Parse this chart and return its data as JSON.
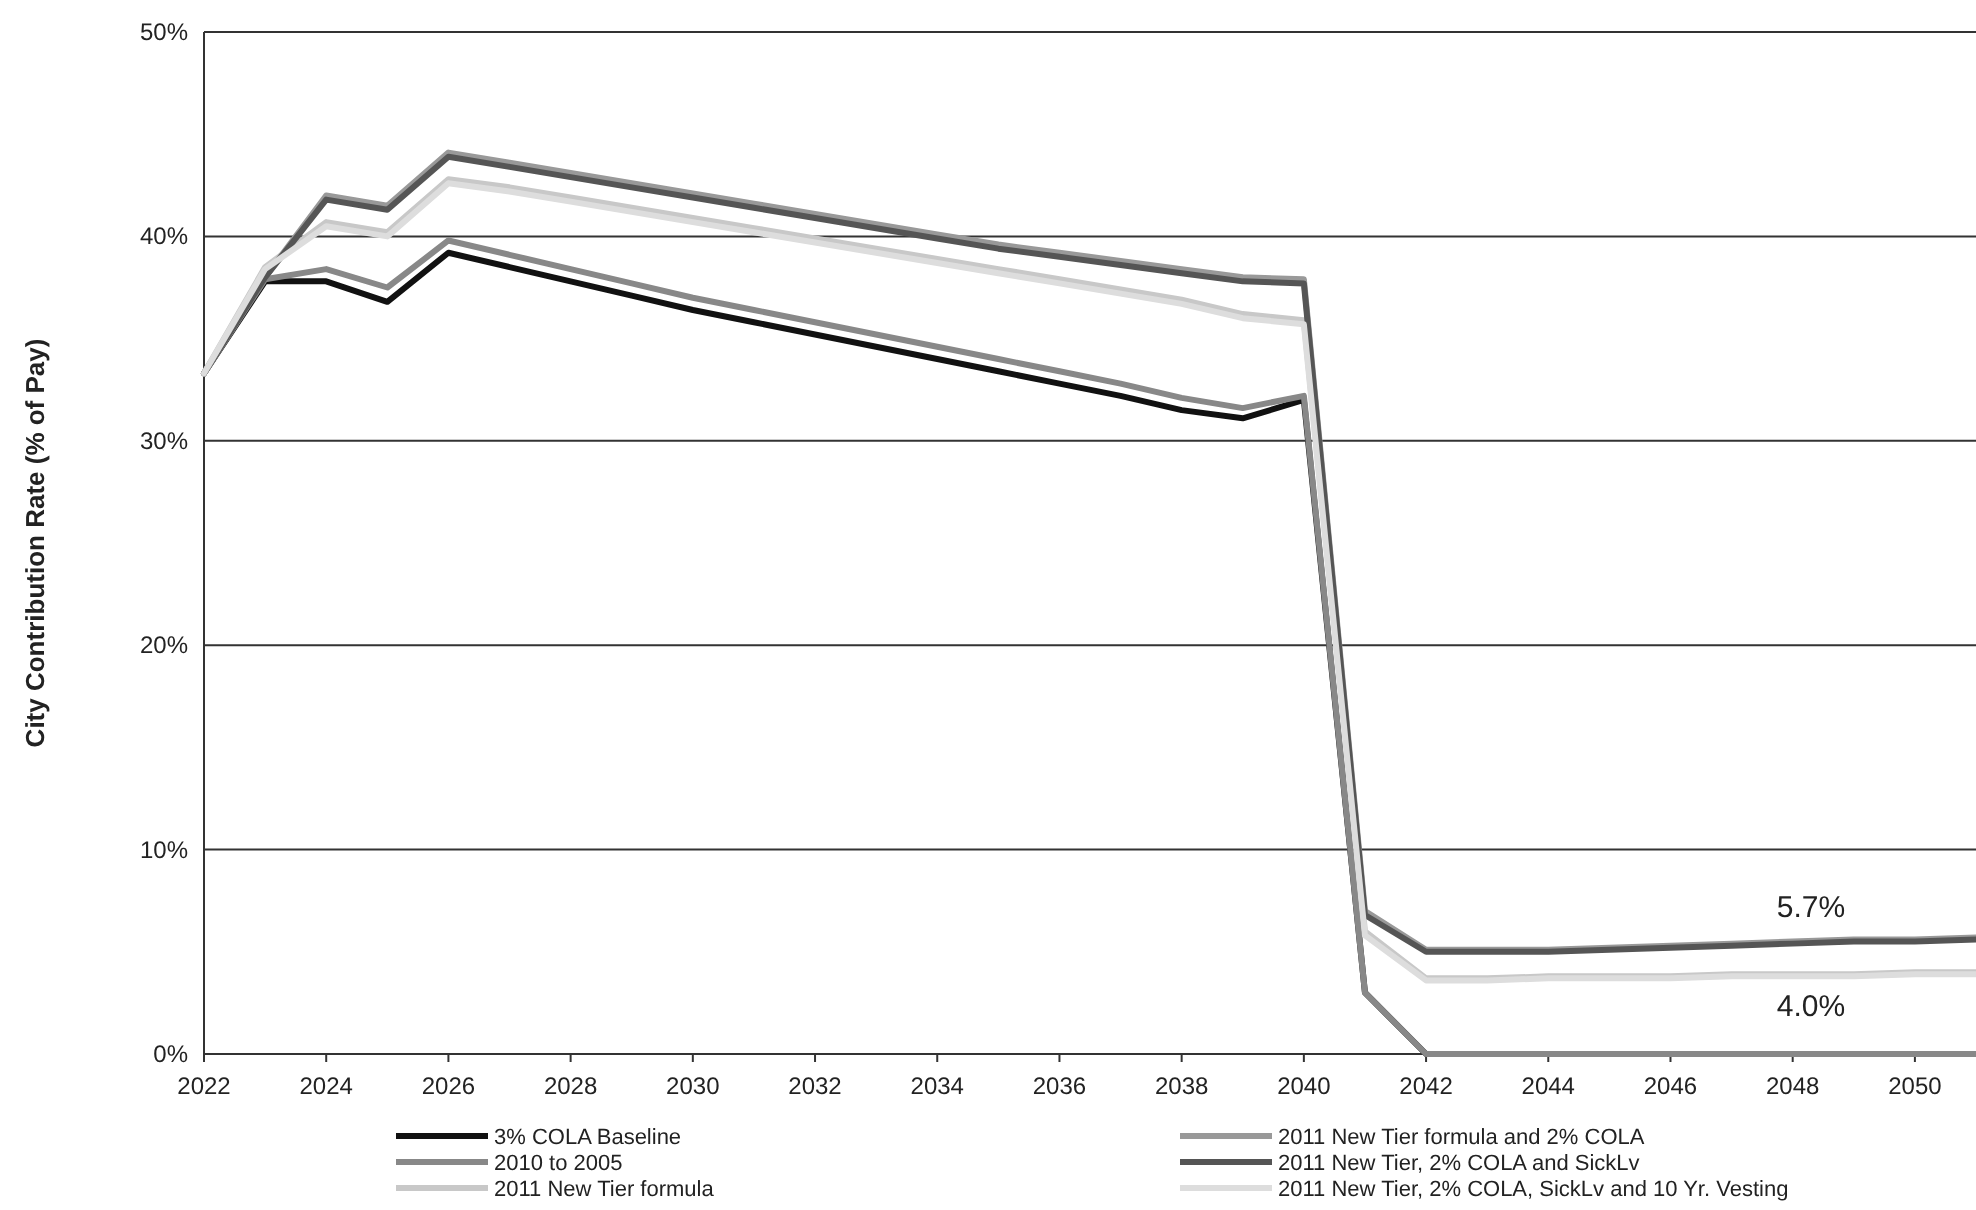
{
  "chart_data": {
    "type": "line",
    "ylabel": "City Contribution Rate (% of Pay)",
    "x": [
      2022,
      2023,
      2024,
      2025,
      2026,
      2027,
      2028,
      2029,
      2030,
      2031,
      2032,
      2033,
      2034,
      2035,
      2036,
      2037,
      2038,
      2039,
      2040,
      2041,
      2042,
      2043,
      2044,
      2045,
      2046,
      2047,
      2048,
      2049,
      2050,
      2051
    ],
    "xlim": [
      2022,
      2051
    ],
    "xticks": [
      2022,
      2024,
      2026,
      2028,
      2030,
      2032,
      2034,
      2036,
      2038,
      2040,
      2042,
      2044,
      2046,
      2048,
      2050
    ],
    "ylim": [
      0,
      50
    ],
    "yticks": [
      {
        "value": 0,
        "label": "0%"
      },
      {
        "value": 10,
        "label": "10%"
      },
      {
        "value": 20,
        "label": "20%"
      },
      {
        "value": 30,
        "label": "30%"
      },
      {
        "value": 40,
        "label": "40%"
      },
      {
        "value": 50,
        "label": "50%"
      }
    ],
    "grid": "y",
    "legend": "bottom",
    "marker": "none",
    "line_style": "solid",
    "series": [
      {
        "name": "3% COLA Baseline",
        "color": "#111111",
        "values": [
          33.3,
          37.8,
          37.8,
          36.8,
          39.2,
          38.5,
          37.8,
          37.1,
          36.4,
          35.8,
          35.2,
          34.6,
          34.0,
          33.4,
          32.8,
          32.2,
          31.5,
          31.1,
          32.0,
          3.0,
          0,
          0,
          0,
          0,
          0,
          0,
          0,
          0,
          0,
          0
        ]
      },
      {
        "name": "2010 to 2005",
        "color": "#888888",
        "values": [
          33.3,
          37.9,
          38.4,
          37.5,
          39.8,
          39.1,
          38.4,
          37.7,
          37.0,
          36.4,
          35.8,
          35.2,
          34.6,
          34.0,
          33.4,
          32.8,
          32.1,
          31.6,
          32.2,
          3.0,
          0,
          0,
          0,
          0,
          0,
          0,
          0,
          0,
          0,
          0
        ]
      },
      {
        "name": "2011 New Tier formula",
        "color": "#c8c8c8",
        "values": [
          33.3,
          38.5,
          40.7,
          40.2,
          42.8,
          42.4,
          41.9,
          41.4,
          40.9,
          40.4,
          39.9,
          39.4,
          38.9,
          38.4,
          37.9,
          37.4,
          36.9,
          36.2,
          35.9,
          6.0,
          3.7,
          3.7,
          3.8,
          3.8,
          3.8,
          3.9,
          3.9,
          3.9,
          4.0,
          4.0
        ]
      },
      {
        "name": "2011 New Tier formula and 2% COLA",
        "color": "#999999",
        "values": [
          33.3,
          38.0,
          42.0,
          41.5,
          44.1,
          43.6,
          43.1,
          42.6,
          42.1,
          41.6,
          41.1,
          40.6,
          40.1,
          39.6,
          39.2,
          38.8,
          38.4,
          38.0,
          37.9,
          7.0,
          5.1,
          5.1,
          5.1,
          5.2,
          5.3,
          5.4,
          5.5,
          5.6,
          5.6,
          5.7
        ]
      },
      {
        "name": "2011 New Tier, 2% COLA and SickLv",
        "color": "#555555",
        "values": [
          33.3,
          38.0,
          41.8,
          41.3,
          43.9,
          43.4,
          42.9,
          42.4,
          41.9,
          41.4,
          40.9,
          40.4,
          39.9,
          39.4,
          39.0,
          38.6,
          38.2,
          37.8,
          37.7,
          6.8,
          5.0,
          5.0,
          5.0,
          5.1,
          5.2,
          5.3,
          5.4,
          5.5,
          5.5,
          5.6
        ]
      },
      {
        "name": "2011 New Tier, 2% COLA, SickLv and 10 Yr. Vesting",
        "color": "#dddddd",
        "values": [
          33.3,
          38.4,
          40.5,
          40.0,
          42.6,
          42.2,
          41.7,
          41.2,
          40.7,
          40.2,
          39.7,
          39.2,
          38.7,
          38.2,
          37.7,
          37.2,
          36.7,
          36.0,
          35.7,
          5.8,
          3.6,
          3.6,
          3.7,
          3.7,
          3.7,
          3.8,
          3.8,
          3.8,
          3.9,
          3.9
        ]
      }
    ],
    "annotations": [
      {
        "text": "5.7%",
        "x": 2048.3,
        "y": 5.7
      },
      {
        "text": "4.0%",
        "x": 2048.3,
        "y": 4.0
      }
    ]
  }
}
